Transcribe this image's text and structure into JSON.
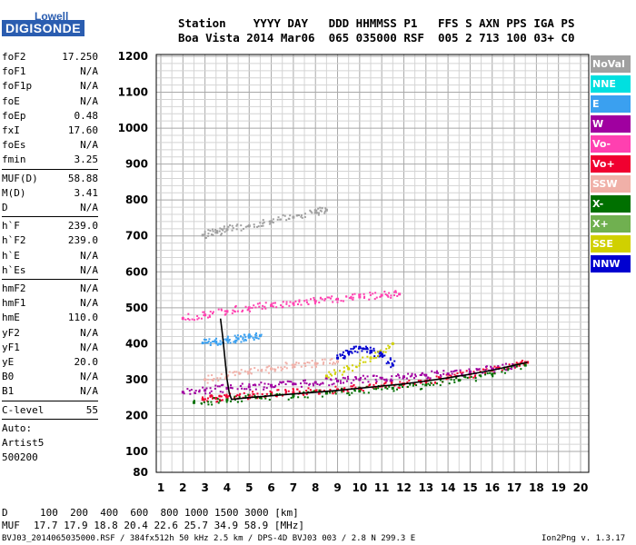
{
  "logo": {
    "top": "Lowell",
    "bottom": "DIGISONDE"
  },
  "header": {
    "row1": "Station    YYYY DAY   DDD HHMMSS P1   FFS S AXN PPS IGA PS",
    "row2": "Boa Vista 2014 Mar06  065 035000 RSF  005 2 713 100 03+ C0"
  },
  "params": {
    "group1": [
      {
        "k": "foF2",
        "v": "17.250"
      },
      {
        "k": "foF1",
        "v": "N/A"
      },
      {
        "k": "foF1p",
        "v": "N/A"
      },
      {
        "k": "foE",
        "v": "N/A"
      },
      {
        "k": "foEp",
        "v": "0.48"
      },
      {
        "k": "fxI",
        "v": "17.60"
      },
      {
        "k": "foEs",
        "v": "N/A"
      },
      {
        "k": "fmin",
        "v": "3.25"
      }
    ],
    "group2": [
      {
        "k": "MUF(D)",
        "v": "58.88"
      },
      {
        "k": "M(D)",
        "v": "3.41"
      },
      {
        "k": "D",
        "v": "N/A"
      }
    ],
    "group3": [
      {
        "k": "h`F",
        "v": "239.0"
      },
      {
        "k": "h`F2",
        "v": "239.0"
      },
      {
        "k": "h`E",
        "v": "N/A"
      },
      {
        "k": "h`Es",
        "v": "N/A"
      }
    ],
    "group4": [
      {
        "k": "hmF2",
        "v": "N/A"
      },
      {
        "k": "hmF1",
        "v": "N/A"
      },
      {
        "k": "hmE",
        "v": "110.0"
      },
      {
        "k": "yF2",
        "v": "N/A"
      },
      {
        "k": "yF1",
        "v": "N/A"
      },
      {
        "k": "yE",
        "v": "20.0"
      },
      {
        "k": "B0",
        "v": "N/A"
      },
      {
        "k": "B1",
        "v": "N/A"
      }
    ],
    "group5": [
      {
        "k": "C-level",
        "v": "55"
      }
    ],
    "group6": [
      {
        "k": "Auto:",
        "v": ""
      },
      {
        "k": "Artist5",
        "v": ""
      },
      {
        "k": "500200",
        "v": ""
      }
    ]
  },
  "legend": [
    {
      "label": "NoVal",
      "color": "#a0a0a0"
    },
    {
      "label": "NNE",
      "color": "#00e0e0"
    },
    {
      "label": "E",
      "color": "#3aa0f0"
    },
    {
      "label": "W",
      "color": "#a000a0"
    },
    {
      "label": "Vo-",
      "color": "#ff40b0"
    },
    {
      "label": "Vo+",
      "color": "#f00030"
    },
    {
      "label": "SSW",
      "color": "#f0b0a8"
    },
    {
      "label": "X-",
      "color": "#007000"
    },
    {
      "label": "X+",
      "color": "#70b050"
    },
    {
      "label": "SSE",
      "color": "#d0d000"
    },
    {
      "label": "NNW",
      "color": "#0000d0"
    }
  ],
  "footer": {
    "d_label": "D",
    "d_values": "100  200  400  600  800 1000 1500 3000 [km]",
    "muf_label": "MUF",
    "muf_values": "17.7 17.9 18.8 20.4 22.6 25.7 34.9 58.9 [MHz]",
    "file": "BVJ03_2014065035000.RSF / 384fx512h 50 kHz 2.5 km / DPS-4D BVJ03 003 / 2.8 N 299.3 E",
    "version": "Ion2Png v. 1.3.17"
  },
  "chart_data": {
    "type": "scatter",
    "title": "",
    "xlabel": "",
    "ylabel": "",
    "xlim": [
      1,
      20
    ],
    "ylim": [
      80,
      1200
    ],
    "x_ticks": [
      1,
      2,
      3,
      4,
      5,
      6,
      7,
      8,
      9,
      10,
      11,
      12,
      13,
      14,
      15,
      16,
      17,
      18,
      19,
      20
    ],
    "y_ticks": [
      80,
      100,
      200,
      300,
      400,
      500,
      600,
      700,
      800,
      900,
      1000,
      1100,
      1200
    ],
    "grid": true,
    "legend_position": "right",
    "series": [
      {
        "name": "Vo+",
        "color": "#f00030",
        "x": [
          2.9,
          3.5,
          4.0,
          5.0,
          6.0,
          7.0,
          8.0,
          9.0,
          10.0,
          11.0,
          12.0,
          13.0,
          14.0,
          15.0,
          16.0,
          17.0,
          17.6
        ],
        "y": [
          245,
          248,
          252,
          256,
          260,
          264,
          268,
          272,
          276,
          282,
          288,
          296,
          305,
          315,
          326,
          340,
          348
        ]
      },
      {
        "name": "W",
        "color": "#a000a0",
        "x": [
          2.0,
          3.0,
          4.0,
          5.0,
          6.0,
          7.0,
          8.0,
          9.0,
          10.0,
          11.0,
          12.0,
          13.0,
          14.0,
          15.0,
          16.0,
          17.0
        ],
        "y": [
          265,
          270,
          276,
          280,
          284,
          288,
          292,
          296,
          300,
          304,
          308,
          312,
          316,
          322,
          330,
          338
        ]
      },
      {
        "name": "Vo-",
        "color": "#ff40b0",
        "x": [
          2.0,
          3.0,
          4.0,
          5.0,
          6.0,
          7.0,
          8.0,
          9.0,
          10.0,
          11.0,
          11.8
        ],
        "y": [
          470,
          480,
          490,
          500,
          506,
          512,
          518,
          524,
          530,
          535,
          538
        ]
      },
      {
        "name": "X-",
        "color": "#007000",
        "x": [
          2.5,
          4.0,
          5.5,
          7.0,
          8.5,
          10.0,
          11.5,
          13.0,
          14.5,
          16.0,
          17.5
        ],
        "y": [
          236,
          244,
          250,
          255,
          262,
          268,
          276,
          285,
          298,
          315,
          340
        ]
      },
      {
        "name": "SSW",
        "color": "#f0b0a8",
        "x": [
          3.0,
          4.0,
          5.0,
          6.0,
          7.0,
          8.0,
          9.0
        ],
        "y": [
          300,
          310,
          320,
          330,
          340,
          345,
          350
        ]
      },
      {
        "name": "E",
        "color": "#3aa0f0",
        "x": [
          2.9,
          3.5,
          4.0,
          4.5,
          5.0,
          5.5
        ],
        "y": [
          402,
          405,
          410,
          414,
          418,
          422
        ]
      },
      {
        "name": "NoVal",
        "color": "#a0a0a0",
        "x": [
          2.9,
          3.5,
          4.0,
          5.0,
          6.0,
          7.0,
          8.0,
          8.5
        ],
        "y": [
          702,
          710,
          718,
          728,
          740,
          752,
          765,
          772
        ]
      },
      {
        "name": "NNW",
        "color": "#0000d0",
        "x": [
          9.0,
          9.5,
          10.0,
          10.5,
          11.0,
          11.5
        ],
        "y": [
          360,
          375,
          390,
          380,
          370,
          340
        ]
      },
      {
        "name": "SSE",
        "color": "#d0d000",
        "x": [
          8.5,
          9.5,
          10.5,
          11.5
        ],
        "y": [
          310,
          330,
          360,
          400
        ]
      }
    ],
    "trace": {
      "name": "trace",
      "color": "#000000",
      "x": [
        3.7,
        3.8,
        3.9,
        4.0,
        4.1,
        4.2,
        5.0,
        6.0,
        7.0,
        8.0,
        9.0,
        10.0,
        11.0,
        12.0,
        13.0,
        14.0,
        15.0,
        16.0,
        17.0,
        17.6
      ],
      "y": [
        470,
        420,
        360,
        300,
        262,
        245,
        250,
        255,
        260,
        265,
        270,
        276,
        282,
        288,
        296,
        305,
        315,
        326,
        340,
        348
      ]
    }
  }
}
